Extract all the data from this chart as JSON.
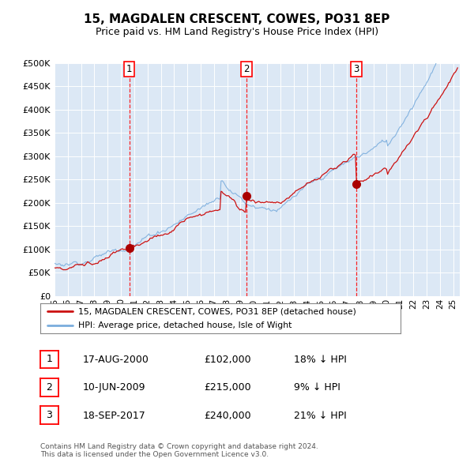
{
  "title": "15, MAGDALEN CRESCENT, COWES, PO31 8EP",
  "subtitle": "Price paid vs. HM Land Registry's House Price Index (HPI)",
  "bg_color": "#dce8f5",
  "red_line_color": "#cc1111",
  "blue_line_color": "#7aaddd",
  "red_line_label": "15, MAGDALEN CRESCENT, COWES, PO31 8EP (detached house)",
  "blue_line_label": "HPI: Average price, detached house, Isle of Wight",
  "footer": "Contains HM Land Registry data © Crown copyright and database right 2024.\nThis data is licensed under the Open Government Licence v3.0.",
  "transactions": [
    {
      "num": 1,
      "date": "17-AUG-2000",
      "price": 102000,
      "hpi_rel": "18% ↓ HPI",
      "year": 2000.62
    },
    {
      "num": 2,
      "date": "10-JUN-2009",
      "price": 215000,
      "hpi_rel": "9% ↓ HPI",
      "year": 2009.44
    },
    {
      "num": 3,
      "date": "18-SEP-2017",
      "price": 240000,
      "hpi_rel": "21% ↓ HPI",
      "year": 2017.71
    }
  ],
  "ylim": [
    0,
    500000
  ],
  "yticks": [
    0,
    50000,
    100000,
    150000,
    200000,
    250000,
    300000,
    350000,
    400000,
    450000,
    500000
  ],
  "xmin": 1995.0,
  "xmax": 2025.5
}
